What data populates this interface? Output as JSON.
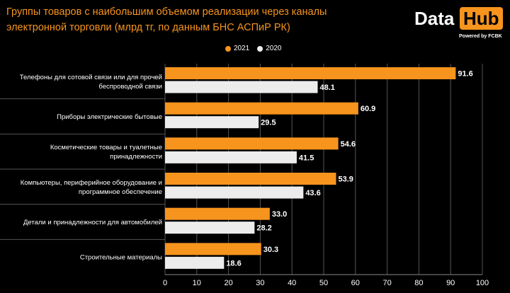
{
  "title": "Группы товаров с наибольшим объемом реализации через каналы электронной торговли (млрд тг, по данным БНС АСПиР РК)",
  "logo": {
    "part1": "Data",
    "part2": "Hub",
    "tagline": "Powered by FCBK"
  },
  "colors": {
    "s2021": "#f7941d",
    "s2020": "#ececec",
    "background": "#000000",
    "grid": "#555555"
  },
  "chart_data": {
    "type": "bar",
    "orientation": "horizontal",
    "categories": [
      "Телефоны для сотовой связи или для прочей беспроводной связи",
      "Приборы электрические бытовые",
      "Косметические товары и туалетные принадлежности",
      "Компьютеры, периферийное оборудование и программное обеспечение",
      "Детали и принадлежности для автомобилей",
      "Строительные материалы"
    ],
    "series": [
      {
        "name": "2021",
        "values": [
          91.6,
          60.9,
          54.6,
          53.9,
          33.0,
          30.3
        ],
        "labels": [
          "91.6",
          "60.9",
          "54.6",
          "53.9",
          "33.0",
          "30.3"
        ]
      },
      {
        "name": "2020",
        "values": [
          48.1,
          29.5,
          41.5,
          43.6,
          28.2,
          18.6
        ],
        "labels": [
          "48.1",
          "29.5",
          "41.5",
          "43.6",
          "28.2",
          "18.6"
        ]
      }
    ],
    "xlim": [
      0,
      100
    ],
    "xticks": [
      "0",
      "10",
      "20",
      "30",
      "40",
      "50",
      "60",
      "70",
      "80",
      "90",
      "100"
    ],
    "legend": "top-center",
    "grid": true
  }
}
